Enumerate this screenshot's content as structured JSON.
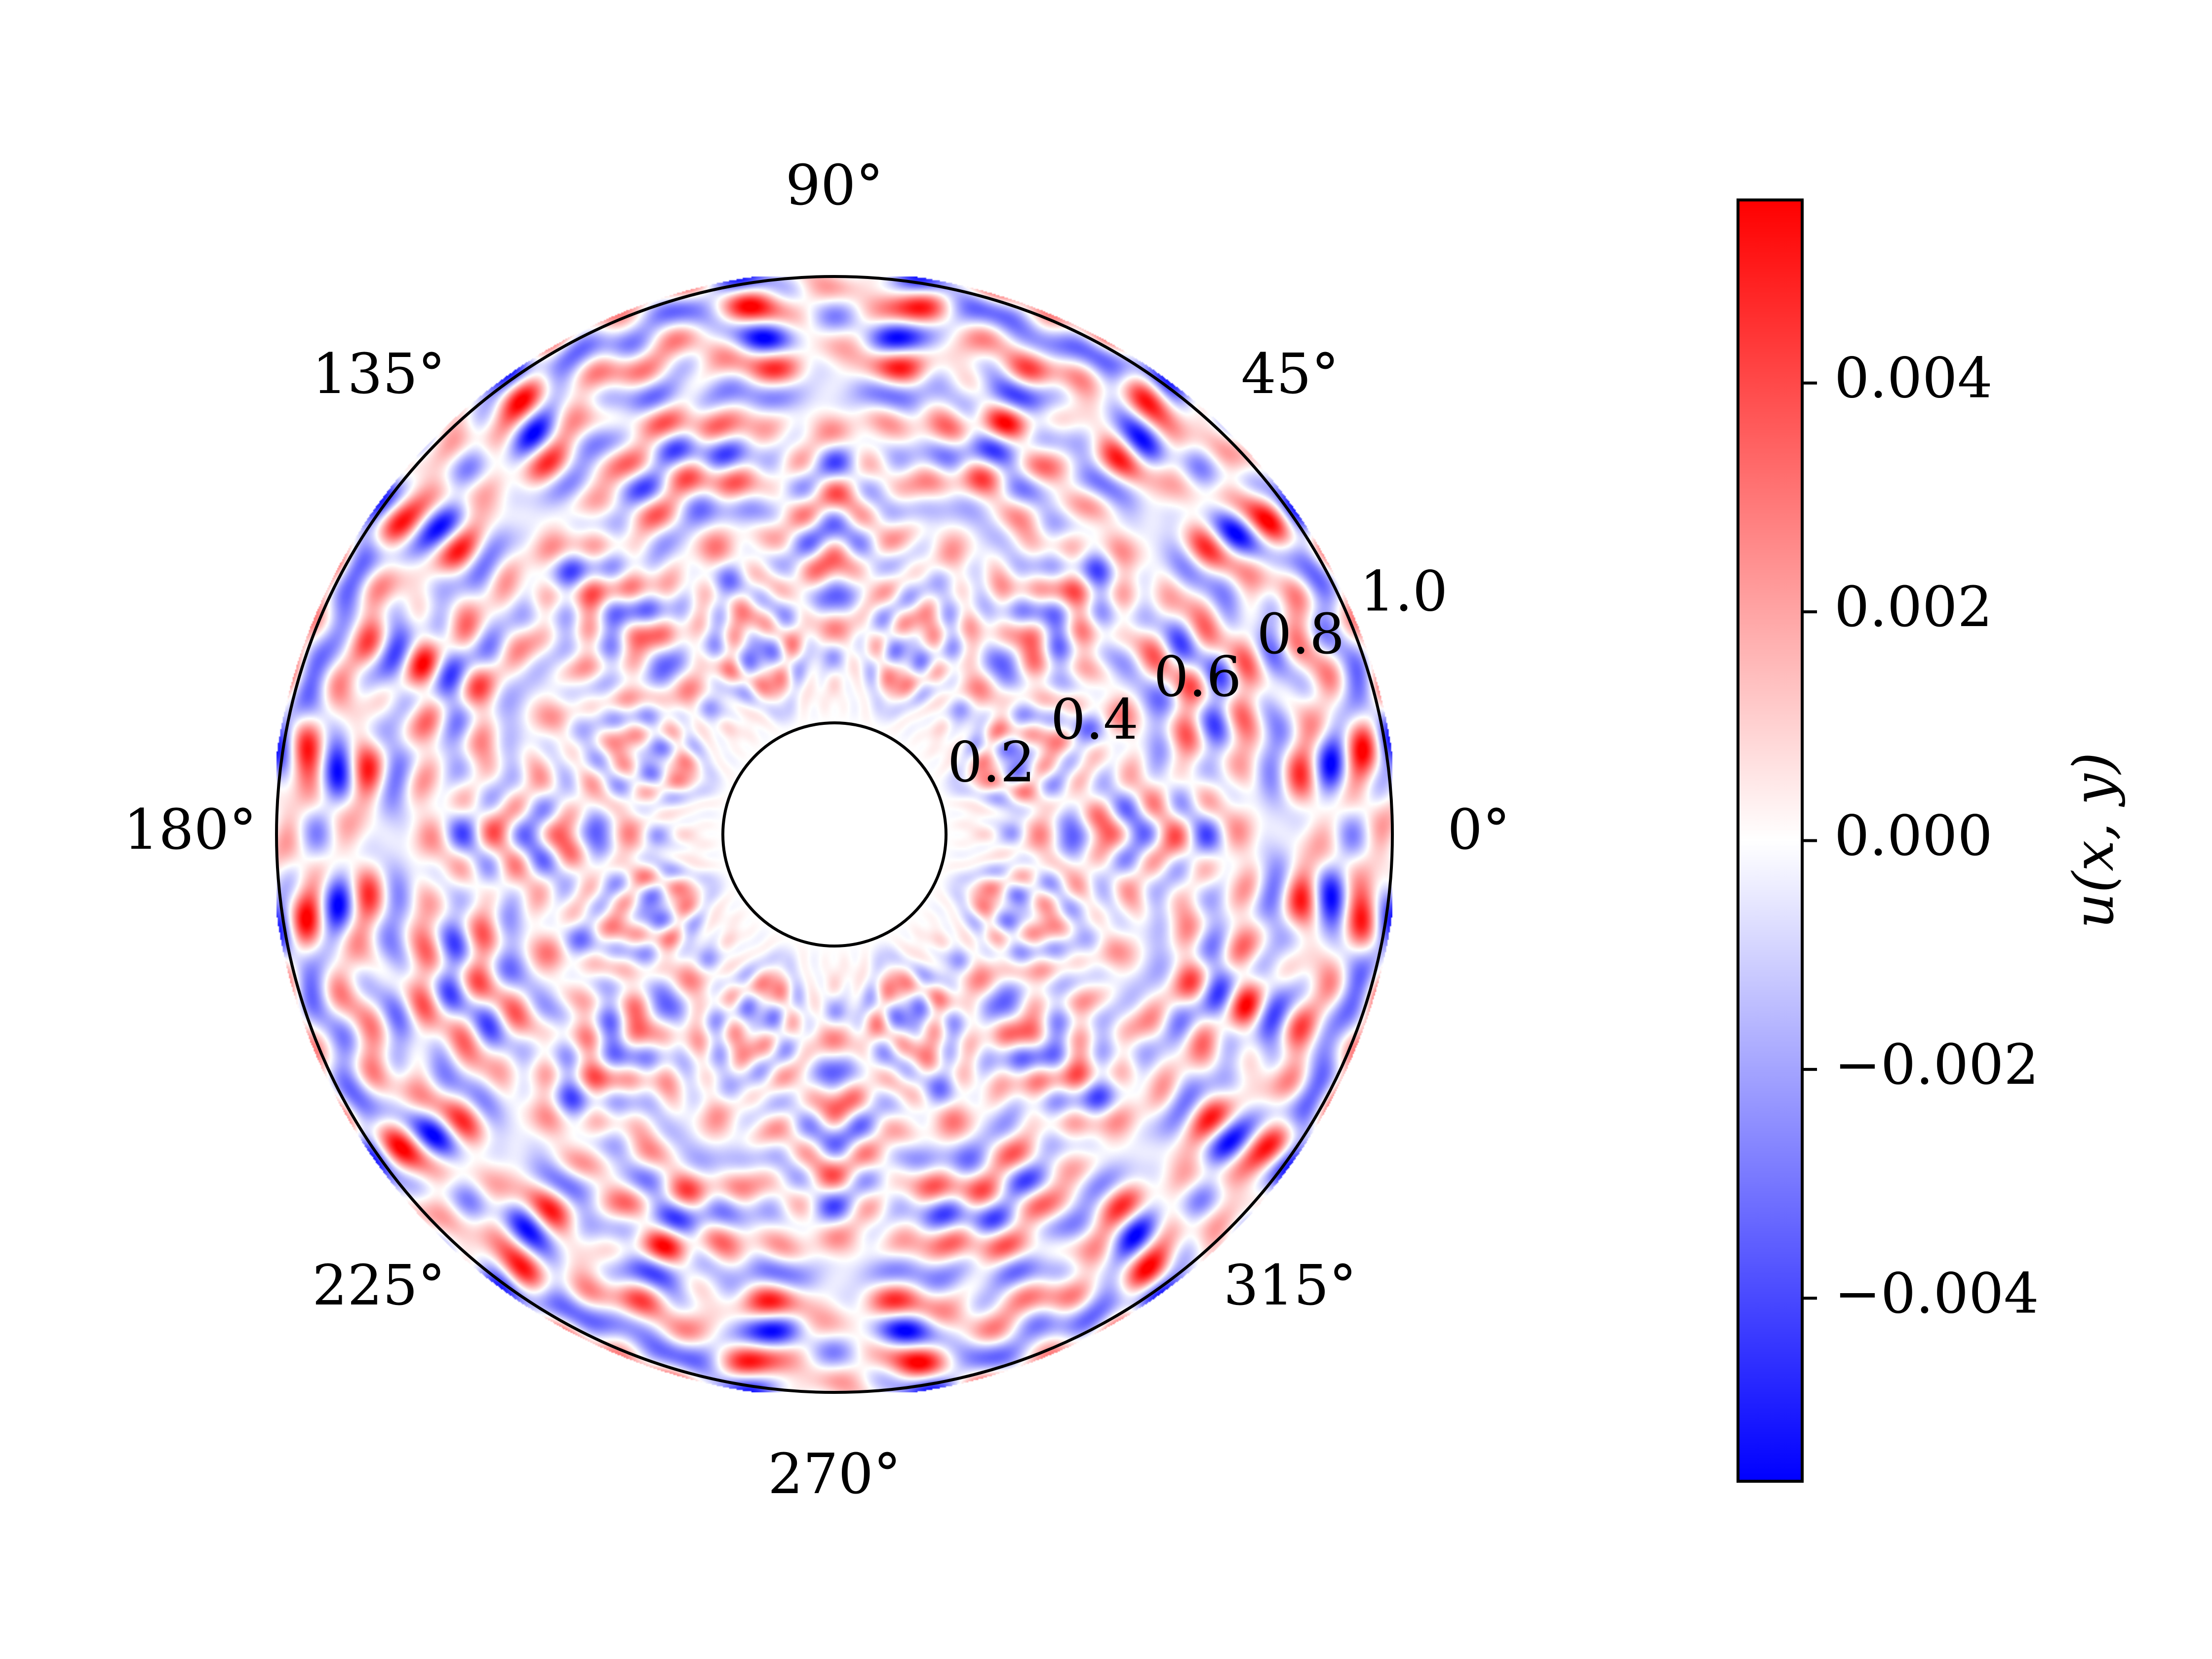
{
  "chart_data": {
    "type": "heatmap",
    "projection": "polar",
    "field": "u(x,y) on an annulus, standing-wave pattern with 8-fold angular symmetry",
    "colormap": "bwr",
    "colors": {
      "low": "#0000ff",
      "mid": "#ffffff",
      "high": "#ff0000"
    },
    "value_range": [
      -0.0056,
      0.0056
    ],
    "r_range": [
      0.2,
      1.0
    ],
    "r_inner": 0.2,
    "r_outer": 1.0,
    "grid": false,
    "angular_ticks": [
      "0°",
      "45°",
      "90°",
      "135°",
      "180°",
      "225°",
      "270°",
      "315°"
    ],
    "angular_tick_values": [
      0,
      45,
      90,
      135,
      180,
      225,
      270,
      315
    ],
    "radial_ticks": [
      "0.2",
      "0.4",
      "0.6",
      "0.8",
      "1.0"
    ],
    "radial_tick_values": [
      0.2,
      0.4,
      0.6,
      0.8,
      1.0
    ],
    "radial_label_angle": 22.5,
    "colorbar": {
      "label": "u(x, y)",
      "ticks": [
        "0.004",
        "0.002",
        "0.000",
        "−0.002",
        "−0.004"
      ],
      "tick_values": [
        0.004,
        0.002,
        0.0,
        -0.002,
        -0.004
      ],
      "min": -0.0056,
      "max": 0.0056,
      "placement": "right"
    }
  }
}
